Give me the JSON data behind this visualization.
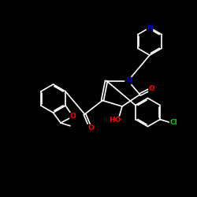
{
  "background": "#000000",
  "bond_color": "#ffffff",
  "atom_colors": {
    "O": "#ff0000",
    "N": "#0000cd",
    "Cl": "#00cc00",
    "C": "#ffffff"
  },
  "figsize": [
    2.5,
    2.5
  ],
  "dpi": 100,
  "xlim": [
    0,
    10
  ],
  "ylim": [
    0,
    10
  ],
  "lw": 1.2,
  "fontsize": 6.0
}
